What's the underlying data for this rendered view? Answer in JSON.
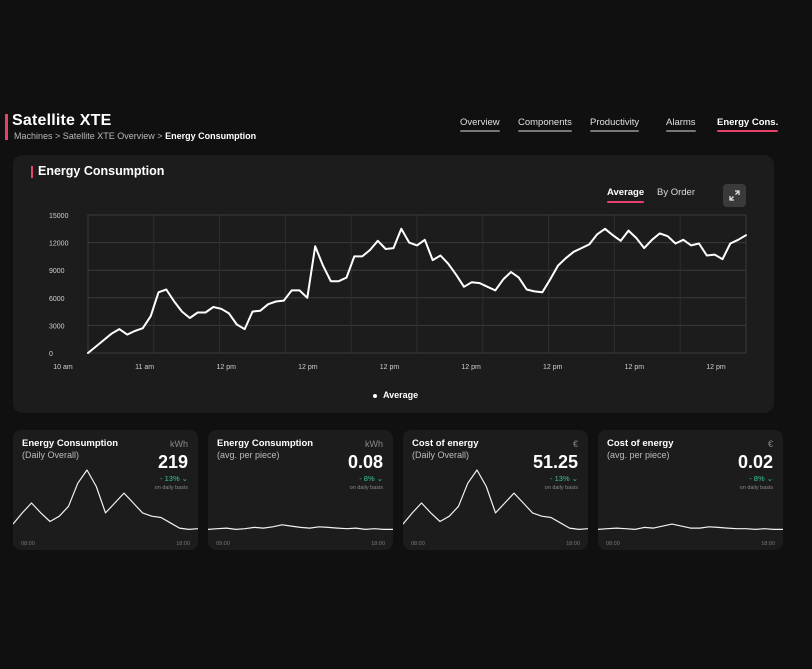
{
  "header": {
    "title": "Satellite XTE",
    "breadcrumb": {
      "part1": "Machines > Satellite XTE Overview > ",
      "current": "Energy Consumption"
    },
    "tabs": [
      {
        "label": "Overview"
      },
      {
        "label": "Components"
      },
      {
        "label": "Productivity"
      },
      {
        "label": "Alarms"
      },
      {
        "label": "Energy Cons."
      }
    ],
    "active_tab": "Energy Cons.",
    "accent_color": "#e5426b"
  },
  "main": {
    "title": "Energy Consumption",
    "toggles": [
      {
        "label": "Average"
      },
      {
        "label": "By Order"
      }
    ],
    "active_toggle": "Average",
    "expand_icon": "expand-icon",
    "legend_label": "Average"
  },
  "chart_data": {
    "type": "line",
    "ylim": [
      0,
      15000
    ],
    "ytick_labels": [
      "15000",
      "12000",
      "9000",
      "6000",
      "3000",
      "0"
    ],
    "xtick_labels": [
      "10 am",
      "11 am",
      "12 pm",
      "12 pm",
      "12 pm",
      "12 pm",
      "12 pm",
      "12 pm",
      "12 pm"
    ],
    "grid": true,
    "legend": "bottom-center",
    "series": [
      {
        "name": "Average",
        "values": [
          0,
          700,
          1400,
          2100,
          2600,
          2000,
          2400,
          2700,
          4000,
          6600,
          6900,
          5600,
          4500,
          3800,
          4400,
          4400,
          5000,
          4800,
          4300,
          3100,
          2600,
          4500,
          4600,
          5300,
          5600,
          5700,
          6800,
          6800,
          6000,
          11600,
          9500,
          7800,
          7800,
          8200,
          10500,
          10500,
          11200,
          12200,
          11300,
          11400,
          13500,
          12000,
          11700,
          12300,
          10100,
          10600,
          9700,
          8500,
          7200,
          7700,
          7600,
          7200,
          6800,
          8000,
          8800,
          8200,
          6900,
          6700,
          6600,
          8000,
          9500,
          10300,
          11000,
          11400,
          11800,
          12900,
          13500,
          12800,
          12200,
          13300,
          12500,
          11400,
          12300,
          13000,
          12700,
          11900,
          12300,
          11700,
          11900,
          10600,
          10700,
          10200,
          11900,
          12300,
          12800
        ]
      }
    ]
  },
  "kpis": [
    {
      "title": "Energy Consumption",
      "subtitle": "(Daily Overall)",
      "unit": "kWh",
      "value": "219",
      "delta": "- 13%",
      "basis": "on daily basis",
      "start": "08:00",
      "end": "18:00",
      "spark": [
        0.18,
        0.35,
        0.5,
        0.35,
        0.22,
        0.3,
        0.45,
        0.8,
        1.0,
        0.75,
        0.35,
        0.5,
        0.65,
        0.5,
        0.35,
        0.3,
        0.28,
        0.2,
        0.12,
        0.1,
        0.11
      ]
    },
    {
      "title": "Energy Consumption",
      "subtitle": "(avg. per piece)",
      "unit": "kWh",
      "value": "0.08",
      "delta": "- 8%",
      "basis": "on daily basis",
      "start": "09:00",
      "end": "18:00",
      "spark": [
        0.1,
        0.11,
        0.12,
        0.1,
        0.11,
        0.13,
        0.12,
        0.14,
        0.17,
        0.15,
        0.13,
        0.12,
        0.14,
        0.13,
        0.12,
        0.11,
        0.12,
        0.1,
        0.11,
        0.1,
        0.1
      ]
    },
    {
      "title": "Cost of energy",
      "subtitle": "(Daily Overall)",
      "unit": "€",
      "value": "51.25",
      "delta": "- 13%",
      "basis": "on daily basis",
      "start": "08:00",
      "end": "18:00",
      "spark": [
        0.18,
        0.35,
        0.5,
        0.35,
        0.22,
        0.3,
        0.45,
        0.8,
        1.0,
        0.75,
        0.35,
        0.5,
        0.65,
        0.5,
        0.35,
        0.3,
        0.28,
        0.2,
        0.12,
        0.1,
        0.11
      ]
    },
    {
      "title": "Cost of energy",
      "subtitle": "(avg. per piece)",
      "unit": "€",
      "value": "0.02",
      "delta": "- 8%",
      "basis": "on daily basis",
      "start": "08:00",
      "end": "18:00",
      "spark": [
        0.1,
        0.11,
        0.12,
        0.11,
        0.1,
        0.13,
        0.12,
        0.15,
        0.18,
        0.15,
        0.12,
        0.12,
        0.14,
        0.13,
        0.12,
        0.11,
        0.11,
        0.1,
        0.11,
        0.1,
        0.1
      ]
    }
  ],
  "delta_color": "#3fc39a"
}
